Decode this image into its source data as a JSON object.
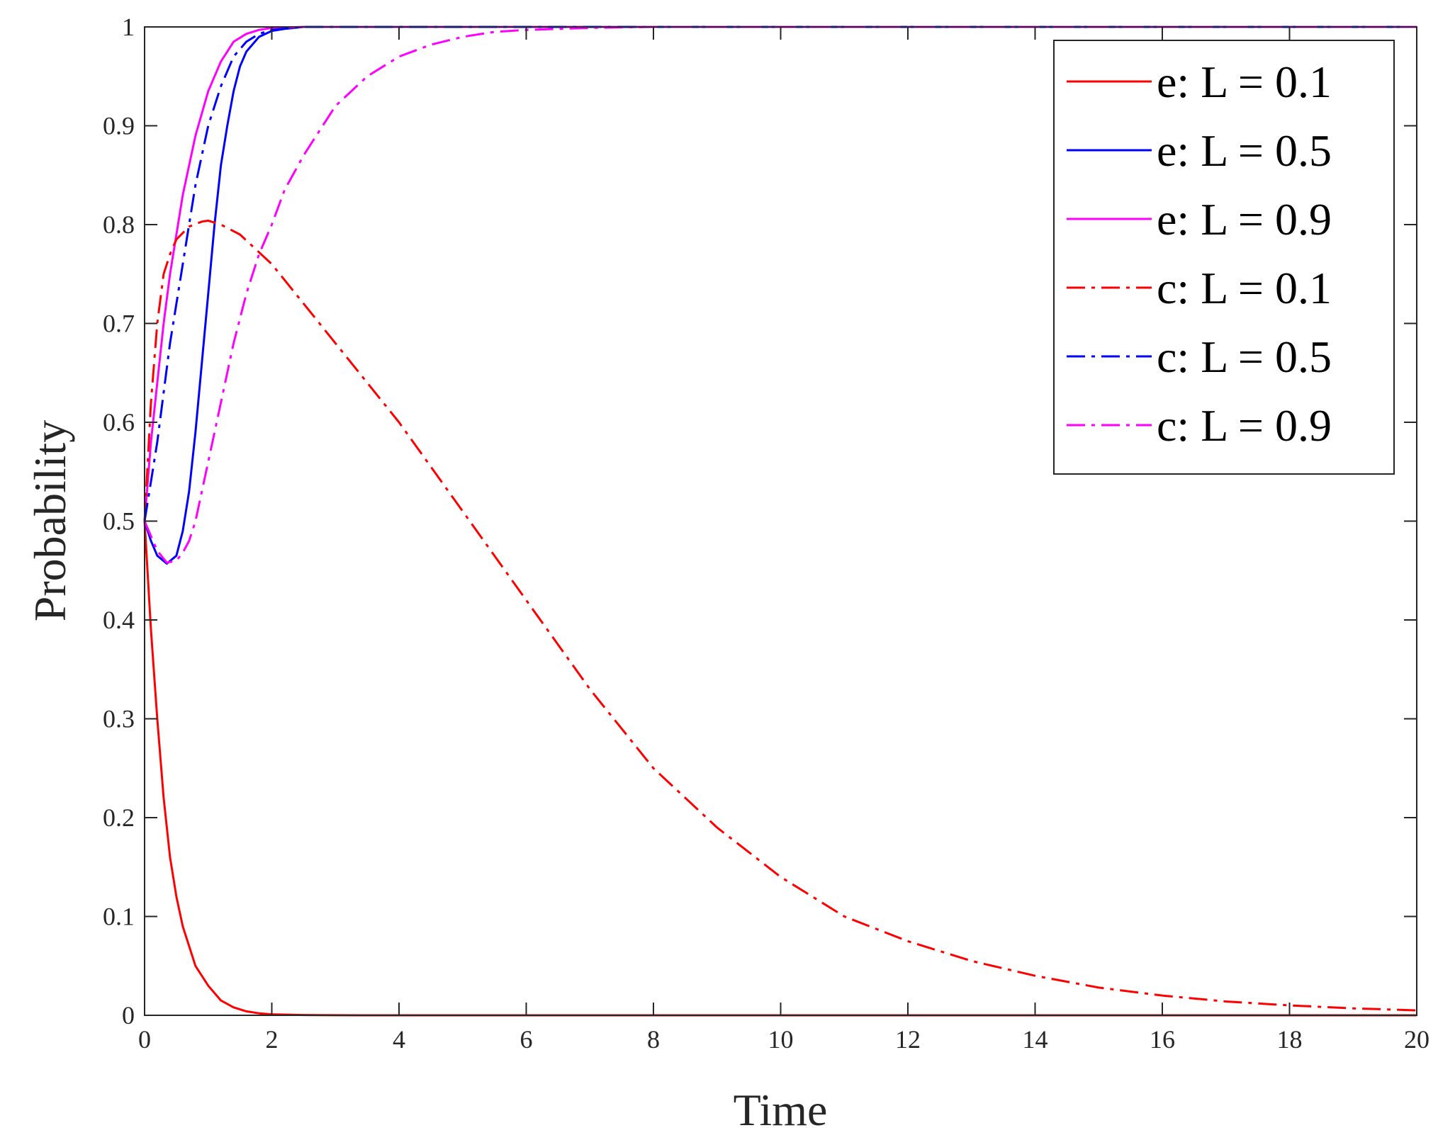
{
  "chart_data": {
    "type": "line",
    "title": "",
    "xlabel": "Time",
    "ylabel": "Probability",
    "xlim": [
      0,
      20
    ],
    "ylim": [
      0,
      1
    ],
    "x_ticks": [
      0,
      2,
      4,
      6,
      8,
      10,
      12,
      14,
      16,
      18,
      20
    ],
    "y_ticks": [
      0,
      0.1,
      0.2,
      0.3,
      0.4,
      0.5,
      0.6,
      0.7,
      0.8,
      0.9,
      1
    ],
    "grid": false,
    "legend_position": "top-right",
    "series": [
      {
        "name": "e: L = 0.1",
        "color": "#ff0000",
        "style": "solid",
        "x": [
          0,
          0.1,
          0.2,
          0.3,
          0.4,
          0.5,
          0.6,
          0.8,
          1.0,
          1.2,
          1.4,
          1.6,
          1.8,
          2.0,
          2.5,
          3,
          4,
          6,
          8,
          10,
          12,
          14,
          16,
          18,
          20
        ],
        "y": [
          0.5,
          0.39,
          0.3,
          0.22,
          0.16,
          0.12,
          0.09,
          0.05,
          0.03,
          0.015,
          0.008,
          0.004,
          0.002,
          0.001,
          0.0003,
          0.0001,
          0,
          0,
          0,
          0,
          0,
          0,
          0,
          0,
          0
        ]
      },
      {
        "name": "e: L = 0.5",
        "color": "#0000ff",
        "style": "solid",
        "x": [
          0,
          0.1,
          0.2,
          0.35,
          0.5,
          0.6,
          0.7,
          0.8,
          0.9,
          1.0,
          1.1,
          1.2,
          1.3,
          1.4,
          1.5,
          1.6,
          1.8,
          2.0,
          2.2,
          2.5,
          3,
          4,
          6,
          8,
          10,
          12,
          14,
          16,
          18,
          20
        ],
        "y": [
          0.5,
          0.48,
          0.465,
          0.457,
          0.465,
          0.49,
          0.53,
          0.59,
          0.66,
          0.73,
          0.8,
          0.86,
          0.9,
          0.935,
          0.96,
          0.975,
          0.99,
          0.996,
          0.998,
          1,
          1,
          1,
          1,
          1,
          1,
          1,
          1,
          1,
          1,
          1
        ]
      },
      {
        "name": "e: L = 0.9",
        "color": "#ff00ff",
        "style": "solid",
        "x": [
          0,
          0.1,
          0.2,
          0.3,
          0.4,
          0.5,
          0.6,
          0.8,
          1.0,
          1.2,
          1.4,
          1.6,
          1.8,
          2.0,
          2.5,
          3,
          4,
          6,
          8,
          10,
          12,
          14,
          16,
          18,
          20
        ],
        "y": [
          0.5,
          0.58,
          0.64,
          0.7,
          0.75,
          0.79,
          0.83,
          0.89,
          0.935,
          0.965,
          0.985,
          0.993,
          0.997,
          0.999,
          1,
          1,
          1,
          1,
          1,
          1,
          1,
          1,
          1,
          1,
          1
        ]
      },
      {
        "name": "c: L = 0.1",
        "color": "#ff0000",
        "style": "dashdot",
        "x": [
          0,
          0.1,
          0.2,
          0.3,
          0.4,
          0.5,
          0.7,
          0.9,
          1.0,
          1.2,
          1.5,
          2,
          2.5,
          3,
          4,
          5,
          6,
          7,
          8,
          9,
          10,
          11,
          12,
          13,
          14,
          15,
          16,
          17,
          18,
          19,
          20
        ],
        "y": [
          0.5,
          0.62,
          0.7,
          0.75,
          0.77,
          0.785,
          0.798,
          0.803,
          0.804,
          0.8,
          0.79,
          0.76,
          0.72,
          0.68,
          0.6,
          0.51,
          0.42,
          0.33,
          0.25,
          0.19,
          0.14,
          0.1,
          0.075,
          0.055,
          0.04,
          0.028,
          0.02,
          0.014,
          0.01,
          0.007,
          0.005
        ]
      },
      {
        "name": "c: L = 0.5",
        "color": "#0000ff",
        "style": "dashdot",
        "x": [
          0,
          0.1,
          0.2,
          0.3,
          0.4,
          0.5,
          0.6,
          0.7,
          0.8,
          0.9,
          1.0,
          1.2,
          1.4,
          1.6,
          1.8,
          2.0,
          2.5,
          3,
          4,
          6,
          8,
          10,
          12,
          14,
          16,
          18,
          20
        ],
        "y": [
          0.5,
          0.54,
          0.58,
          0.63,
          0.68,
          0.72,
          0.76,
          0.8,
          0.84,
          0.87,
          0.9,
          0.94,
          0.97,
          0.985,
          0.993,
          0.997,
          1,
          1,
          1,
          1,
          1,
          1,
          1,
          1,
          1,
          1,
          1
        ]
      },
      {
        "name": "c: L = 0.9",
        "color": "#ff00ff",
        "style": "dashdot",
        "x": [
          0,
          0.2,
          0.35,
          0.5,
          0.6,
          0.7,
          0.8,
          1.0,
          1.2,
          1.4,
          1.6,
          1.8,
          2.0,
          2.2,
          2.5,
          2.8,
          3.0,
          3.5,
          4.0,
          4.5,
          5.0,
          5.5,
          6.0,
          7.0,
          8.0,
          10,
          12,
          14,
          16,
          18,
          20
        ],
        "y": [
          0.5,
          0.47,
          0.458,
          0.46,
          0.468,
          0.48,
          0.5,
          0.56,
          0.62,
          0.68,
          0.73,
          0.77,
          0.8,
          0.835,
          0.87,
          0.9,
          0.92,
          0.95,
          0.97,
          0.982,
          0.99,
          0.995,
          0.997,
          0.999,
          1,
          1,
          1,
          1,
          1,
          1,
          1
        ]
      }
    ]
  }
}
